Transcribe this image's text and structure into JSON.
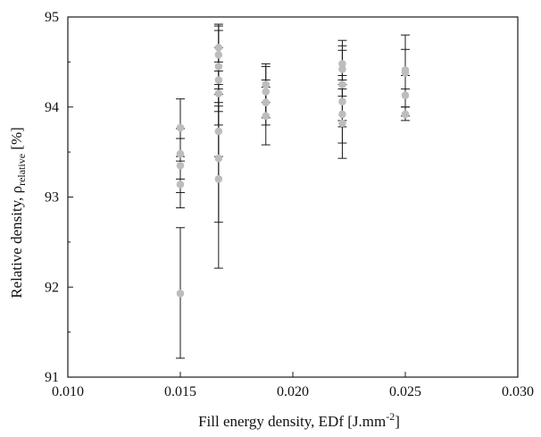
{
  "chart_data": {
    "type": "scatter",
    "title": "",
    "xlabel": {
      "text": "Fill energy density, EDf [J.mm",
      "sup": "-2",
      "suffix": "]"
    },
    "ylabel": {
      "text": "Relative density, ρ",
      "sub": "relative",
      "suffix": " [%]"
    },
    "xlim": [
      0.01,
      0.03
    ],
    "ylim": [
      91,
      95
    ],
    "xticks": [
      "0.010",
      "0.015",
      "0.020",
      "0.025",
      "0.030"
    ],
    "yticks": [
      "91",
      "92",
      "93",
      "94",
      "95"
    ],
    "grid": false,
    "legend": "none",
    "colors": {
      "marker": "#bdbdbd",
      "errorbar": "#1a1a1a",
      "axis": "#1a1a1a"
    },
    "points": [
      {
        "x": 0.015,
        "y": 91.93,
        "err_low": 91.21,
        "err_high": 92.66
      },
      {
        "x": 0.015,
        "y": 93.14,
        "err_low": 92.88,
        "err_high": 93.4
      },
      {
        "x": 0.015,
        "y": 93.35,
        "err_low": 93.05,
        "err_high": 93.65
      },
      {
        "x": 0.015,
        "y": 93.48,
        "err_low": 93.2,
        "err_high": 93.76
      },
      {
        "x": 0.015,
        "y": 93.77,
        "err_low": 93.45,
        "err_high": 94.09
      },
      {
        "x": 0.0167,
        "y": 93.2,
        "err_low": 92.21,
        "err_high": 94.2
      },
      {
        "x": 0.0167,
        "y": 93.43,
        "err_low": 92.72,
        "err_high": 94.14
      },
      {
        "x": 0.0167,
        "y": 93.73,
        "err_low": 93.45,
        "err_high": 94.01
      },
      {
        "x": 0.0167,
        "y": 94.15,
        "err_low": 93.8,
        "err_high": 94.5
      },
      {
        "x": 0.0167,
        "y": 94.3,
        "err_low": 93.95,
        "err_high": 94.66
      },
      {
        "x": 0.0167,
        "y": 94.45,
        "err_low": 94.05,
        "err_high": 94.85
      },
      {
        "x": 0.0167,
        "y": 94.58,
        "err_low": 94.25,
        "err_high": 94.92
      },
      {
        "x": 0.0167,
        "y": 94.66,
        "err_low": 94.4,
        "err_high": 94.9
      },
      {
        "x": 0.0188,
        "y": 93.9,
        "err_low": 93.58,
        "err_high": 94.22
      },
      {
        "x": 0.0188,
        "y": 94.05,
        "err_low": 93.8,
        "err_high": 94.3
      },
      {
        "x": 0.0188,
        "y": 94.17,
        "err_low": 93.88,
        "err_high": 94.48
      },
      {
        "x": 0.0188,
        "y": 94.25,
        "err_low": 94.05,
        "err_high": 94.45
      },
      {
        "x": 0.0222,
        "y": 93.82,
        "err_low": 93.43,
        "err_high": 94.2
      },
      {
        "x": 0.0222,
        "y": 93.92,
        "err_low": 93.6,
        "err_high": 94.25
      },
      {
        "x": 0.0222,
        "y": 94.06,
        "err_low": 93.78,
        "err_high": 94.35
      },
      {
        "x": 0.0222,
        "y": 94.25,
        "err_low": 93.85,
        "err_high": 94.63
      },
      {
        "x": 0.0222,
        "y": 94.42,
        "err_low": 94.12,
        "err_high": 94.74
      },
      {
        "x": 0.0222,
        "y": 94.48,
        "err_low": 94.3,
        "err_high": 94.68
      },
      {
        "x": 0.025,
        "y": 93.92,
        "err_low": 93.85,
        "err_high": 94.0
      },
      {
        "x": 0.025,
        "y": 94.13,
        "err_low": 93.9,
        "err_high": 94.35
      },
      {
        "x": 0.025,
        "y": 94.38,
        "err_low": 94.0,
        "err_high": 94.8
      },
      {
        "x": 0.025,
        "y": 94.41,
        "err_low": 94.2,
        "err_high": 94.64
      }
    ]
  }
}
